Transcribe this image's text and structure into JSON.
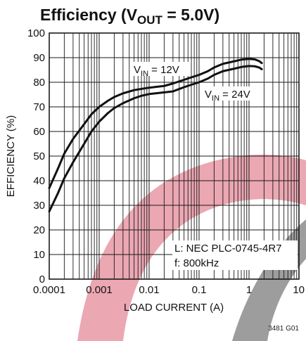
{
  "chart_data": {
    "type": "line",
    "title": {
      "prefix": "Efficiency (V",
      "subscript": "OUT",
      "suffix": " = 5.0V)"
    },
    "xlabel": "LOAD CURRENT (A)",
    "ylabel": "EFFICIENCY (%)",
    "x_scale": "log",
    "xlim": [
      0.0001,
      10
    ],
    "ylim": [
      0,
      100
    ],
    "x_ticks": [
      {
        "value": 0.0001,
        "label": "0.0001"
      },
      {
        "value": 0.001,
        "label": "0.001"
      },
      {
        "value": 0.01,
        "label": "0.01"
      },
      {
        "value": 0.1,
        "label": "0.1"
      },
      {
        "value": 1,
        "label": "1"
      },
      {
        "value": 10,
        "label": "10"
      }
    ],
    "y_ticks": [
      {
        "value": 0,
        "label": "0"
      },
      {
        "value": 10,
        "label": "10"
      },
      {
        "value": 20,
        "label": "20"
      },
      {
        "value": 30,
        "label": "30"
      },
      {
        "value": 40,
        "label": "40"
      },
      {
        "value": 50,
        "label": "50"
      },
      {
        "value": 60,
        "label": "60"
      },
      {
        "value": 70,
        "label": "70"
      },
      {
        "value": 80,
        "label": "80"
      },
      {
        "value": 90,
        "label": "90"
      },
      {
        "value": 100,
        "label": "100"
      }
    ],
    "grid": true,
    "series": [
      {
        "label": {
          "prefix": "V",
          "subscript": "IN",
          "suffix": " = 12V"
        },
        "points": [
          [
            0.0001,
            37
          ],
          [
            0.00015,
            45
          ],
          [
            0.0002,
            51
          ],
          [
            0.0003,
            57
          ],
          [
            0.0005,
            63
          ],
          [
            0.0007,
            67
          ],
          [
            0.001,
            70
          ],
          [
            0.0015,
            72.5
          ],
          [
            0.002,
            74
          ],
          [
            0.003,
            75.5
          ],
          [
            0.005,
            76.8
          ],
          [
            0.007,
            77.3
          ],
          [
            0.01,
            77.8
          ],
          [
            0.015,
            78.2
          ],
          [
            0.02,
            78.5
          ],
          [
            0.03,
            79.5
          ],
          [
            0.05,
            81
          ],
          [
            0.07,
            82
          ],
          [
            0.1,
            83
          ],
          [
            0.15,
            84.5
          ],
          [
            0.2,
            86
          ],
          [
            0.3,
            87.5
          ],
          [
            0.5,
            88.5
          ],
          [
            0.7,
            89.2
          ],
          [
            1,
            89.5
          ],
          [
            1.3,
            89.3
          ],
          [
            1.6,
            88.6
          ],
          [
            1.8,
            87.8
          ]
        ]
      },
      {
        "label": {
          "prefix": "V",
          "subscript": "IN",
          "suffix": " = 24V"
        },
        "points": [
          [
            0.0001,
            27.5
          ],
          [
            0.00015,
            35
          ],
          [
            0.0002,
            41
          ],
          [
            0.0003,
            47.5
          ],
          [
            0.0005,
            55
          ],
          [
            0.0007,
            60
          ],
          [
            0.001,
            64
          ],
          [
            0.0015,
            67.5
          ],
          [
            0.002,
            69.5
          ],
          [
            0.003,
            71.5
          ],
          [
            0.005,
            73.5
          ],
          [
            0.007,
            74.5
          ],
          [
            0.01,
            75.2
          ],
          [
            0.015,
            75.6
          ],
          [
            0.02,
            75.9
          ],
          [
            0.03,
            76.3
          ],
          [
            0.05,
            78
          ],
          [
            0.07,
            79
          ],
          [
            0.1,
            80
          ],
          [
            0.15,
            81.5
          ],
          [
            0.2,
            83
          ],
          [
            0.3,
            84.5
          ],
          [
            0.5,
            85.5
          ],
          [
            0.7,
            86.2
          ],
          [
            1,
            86.6
          ],
          [
            1.3,
            86.5
          ],
          [
            1.6,
            86
          ],
          [
            1.8,
            85.3
          ]
        ]
      }
    ],
    "annotations": {
      "inductor": "L: NEC PLC-0745-4R7",
      "frequency": "f: 800kHz"
    },
    "figure_code": "3481 G01"
  },
  "colors": {
    "curve": "#111111",
    "grid": "#1a1a1a",
    "watermark_red": "#e48a98",
    "watermark_gray": "#8c8c8c"
  }
}
